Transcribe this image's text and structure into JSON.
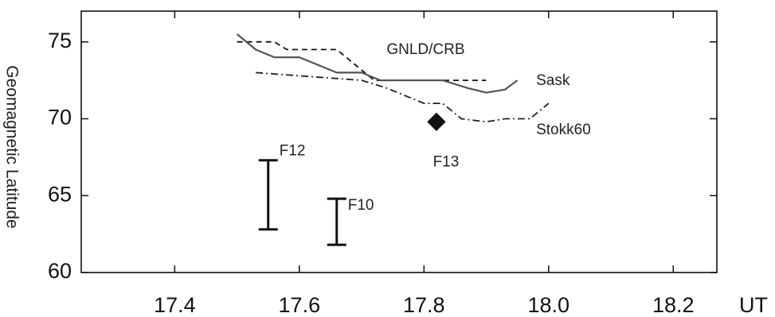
{
  "chart_data": {
    "type": "line",
    "title": "",
    "xlabel": "UT",
    "ylabel": "Geomagnetic Latitude",
    "xlim": [
      17.25,
      18.27
    ],
    "ylim": [
      60,
      77
    ],
    "xticks": [
      17.4,
      17.6,
      17.8,
      18.0,
      18.2
    ],
    "xtick_labels": [
      "17.4",
      "17.6",
      "17.8",
      "18.0",
      "18.2"
    ],
    "yticks": [
      60,
      65,
      70,
      75
    ],
    "ytick_labels": [
      "60",
      "65",
      "70",
      "75"
    ],
    "grid": false,
    "legend": "none",
    "series": [
      {
        "name": "GNLD/CRB",
        "style": "dashed",
        "color": "#111111",
        "x": [
          17.5,
          17.56,
          17.58,
          17.66,
          17.72,
          17.78,
          17.8,
          17.9
        ],
        "y": [
          75.0,
          75.0,
          74.5,
          74.5,
          72.5,
          72.5,
          72.5,
          72.5
        ]
      },
      {
        "name": "Sask",
        "style": "solid",
        "color": "#555555",
        "x": [
          17.5,
          17.53,
          17.56,
          17.6,
          17.66,
          17.7,
          17.73,
          17.83,
          17.87,
          17.9,
          17.93,
          17.95
        ],
        "y": [
          75.5,
          74.5,
          74.0,
          74.0,
          73.0,
          73.0,
          72.5,
          72.5,
          72.0,
          71.7,
          71.9,
          72.5
        ]
      },
      {
        "name": "Stokk60",
        "style": "dashdot",
        "color": "#222222",
        "x": [
          17.53,
          17.7,
          17.74,
          17.8,
          17.83,
          17.86,
          17.9,
          17.93,
          17.97,
          18.0
        ],
        "y": [
          73.0,
          72.5,
          72.0,
          71.0,
          71.0,
          70.0,
          69.8,
          70.0,
          70.0,
          71.0
        ]
      }
    ],
    "error_bars": [
      {
        "label": "F12",
        "x": 17.55,
        "y_low": 62.8,
        "y_high": 67.3
      },
      {
        "label": "F10",
        "x": 17.66,
        "y_low": 61.8,
        "y_high": 64.8
      }
    ],
    "markers": [
      {
        "label": "F13",
        "x": 17.82,
        "y": 69.8,
        "shape": "diamond"
      }
    ]
  }
}
